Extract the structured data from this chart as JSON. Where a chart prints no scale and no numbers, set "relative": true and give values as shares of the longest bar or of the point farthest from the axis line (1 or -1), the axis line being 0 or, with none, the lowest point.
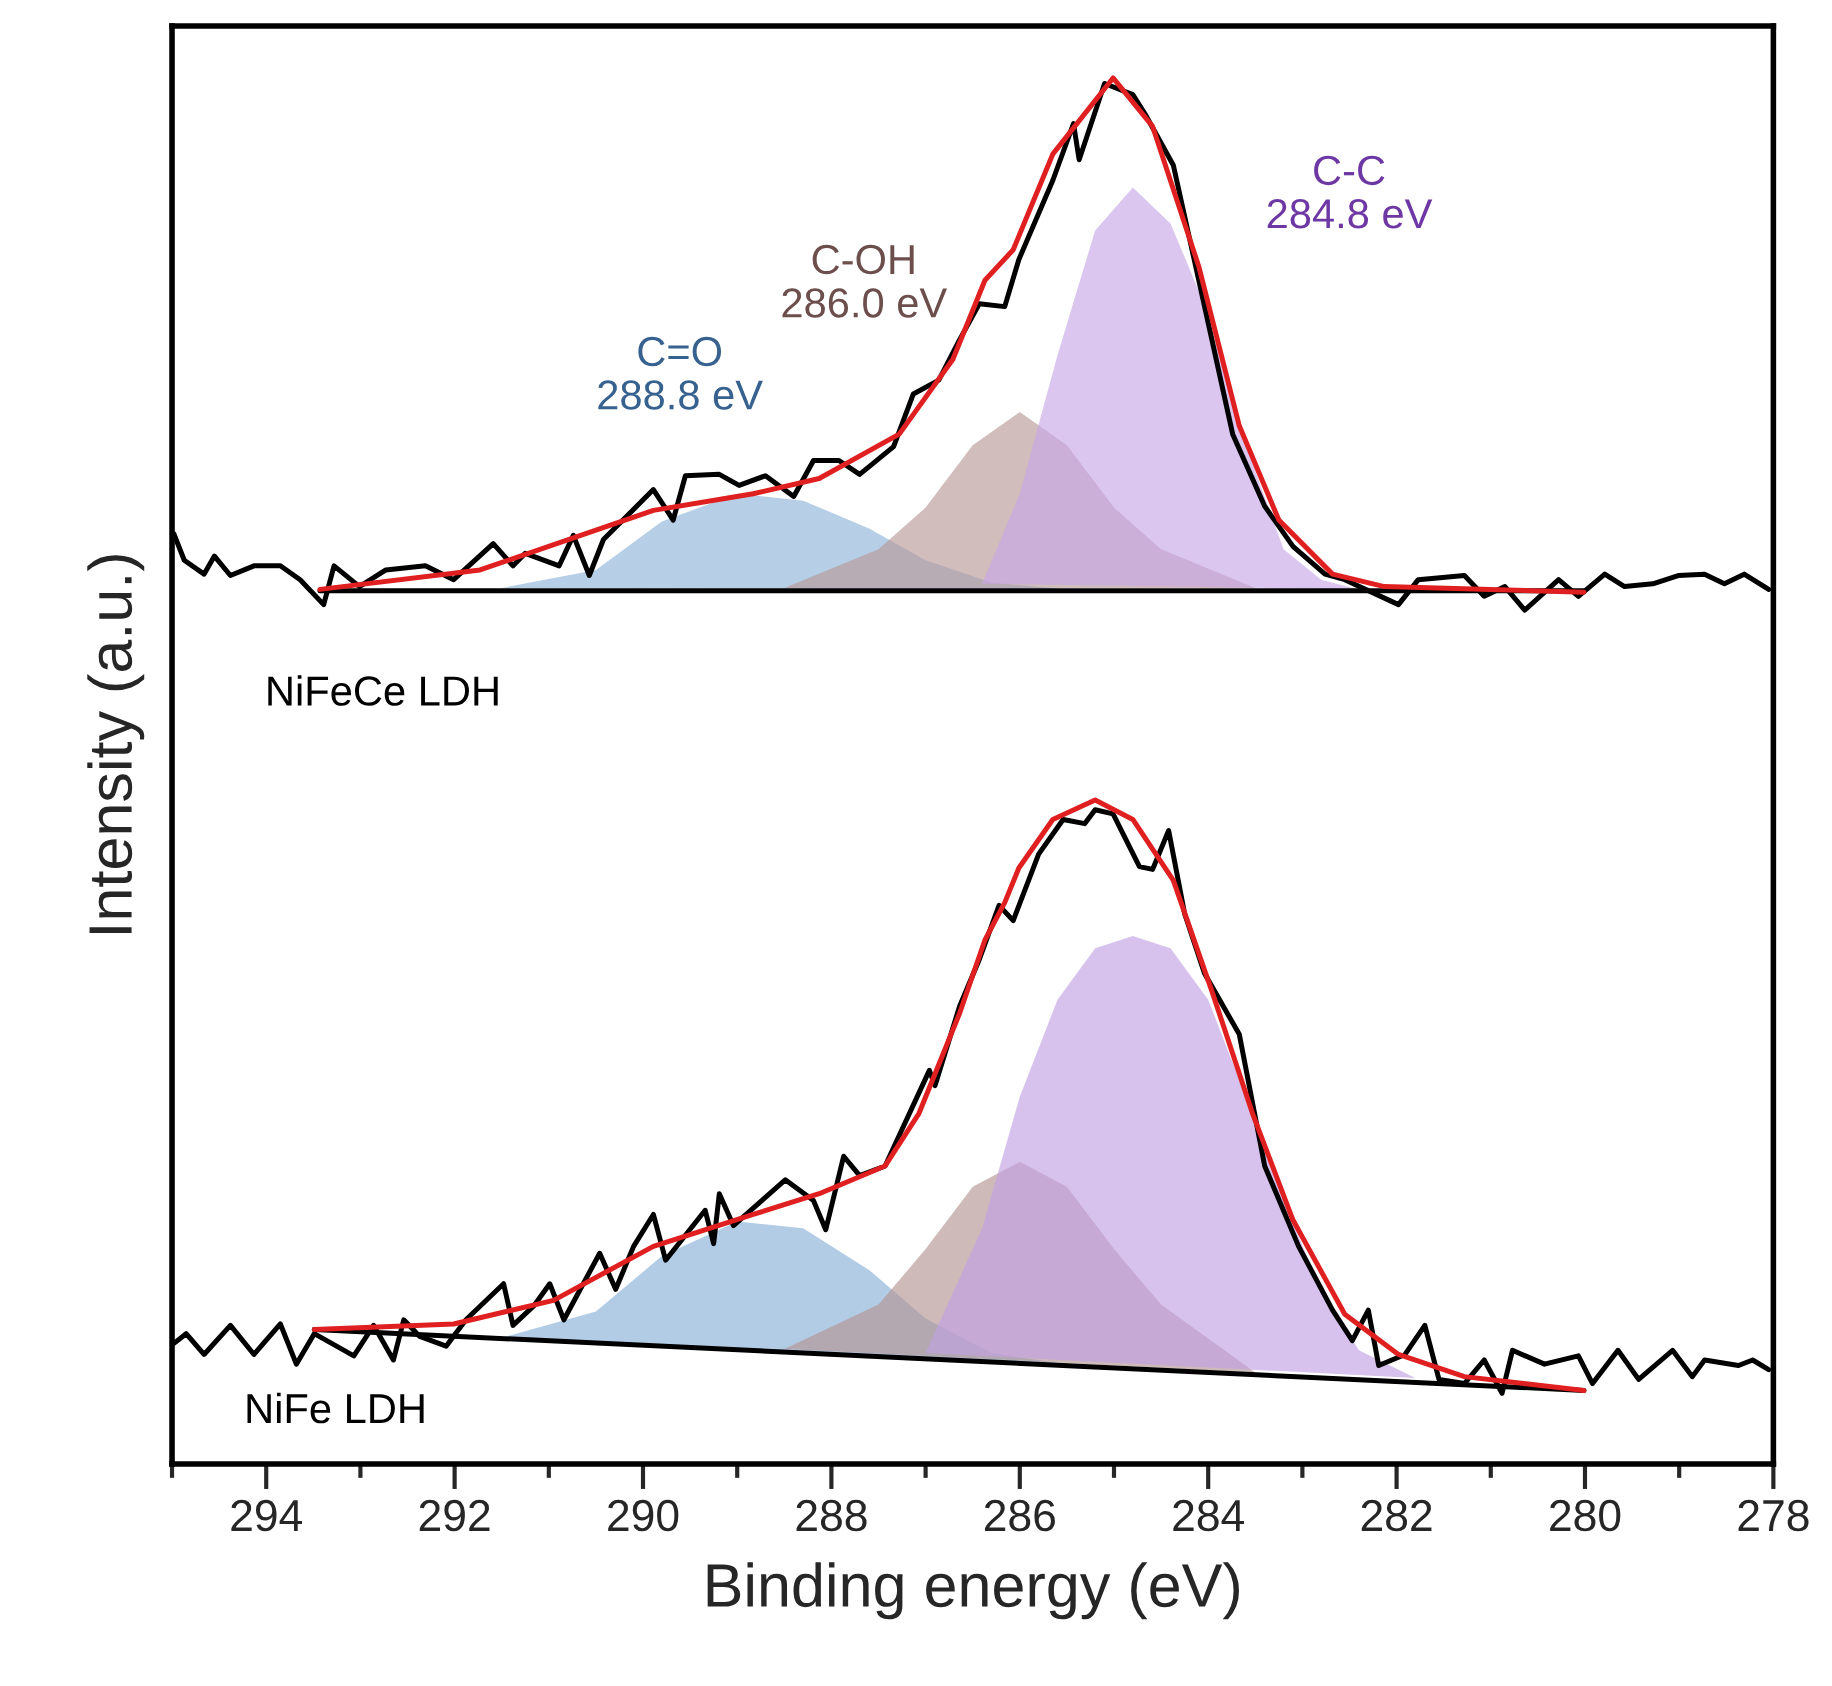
{
  "chart_data": {
    "type": "line",
    "relative": true,
    "xlabel": "Binding energy (eV)",
    "ylabel": "Intensity (a.u.)",
    "xlim": [
      295,
      278
    ],
    "xticks": [
      {
        "value": 295,
        "label": null
      },
      294,
      {
        "value": 293,
        "label": null
      },
      292,
      {
        "value": 291,
        "label": null
      },
      290,
      {
        "value": 289,
        "label": null
      },
      288,
      {
        "value": 287,
        "label": null
      },
      286,
      {
        "value": 285,
        "label": null
      },
      284,
      {
        "value": 283,
        "label": null
      },
      282,
      {
        "value": 281,
        "label": null
      },
      280,
      {
        "value": 279,
        "label": null
      },
      278
    ],
    "grid": false,
    "legend": false,
    "line_style": "solid",
    "marker": "none",
    "series": [
      {
        "type": "area",
        "color": "#8fb3d9",
        "x": [
          291.5,
          290.5,
          289.8,
          289.0,
          288.3,
          287.6,
          287.0,
          286.3,
          285.5
        ],
        "values": [
          0.632,
          0.645,
          0.68,
          0.7,
          0.695,
          0.675,
          0.652,
          0.636,
          0.631
        ]
      },
      {
        "type": "area",
        "color": "#b89a98",
        "x": [
          288.5,
          287.5,
          287.0,
          286.5,
          286.0,
          285.5,
          285.0,
          284.5,
          283.5
        ],
        "values": [
          0.632,
          0.66,
          0.69,
          0.735,
          0.759,
          0.735,
          0.69,
          0.66,
          0.632
        ]
      },
      {
        "type": "area",
        "color": "#c7a8e6",
        "x": [
          286.4,
          286.0,
          285.6,
          285.2,
          284.8,
          284.4,
          284.0,
          283.6,
          283.2,
          282.8,
          282.4
        ],
        "values": [
          0.635,
          0.7,
          0.8,
          0.89,
          0.921,
          0.895,
          0.83,
          0.735,
          0.66,
          0.638,
          0.631
        ]
      },
      {
        "type": "area",
        "color": "#8ab0d8",
        "x": [
          291.5,
          290.5,
          289.8,
          289.0,
          288.3,
          287.6,
          287.0,
          286.3,
          285.5
        ],
        "values": [
          0.091,
          0.11,
          0.15,
          0.175,
          0.17,
          0.14,
          0.105,
          0.08,
          0.072
        ]
      },
      {
        "type": "area",
        "color": "#b39593",
        "x": [
          288.5,
          287.5,
          287.0,
          286.5,
          286.0,
          285.5,
          285.0,
          284.5,
          283.5
        ],
        "values": [
          0.083,
          0.115,
          0.155,
          0.2,
          0.218,
          0.2,
          0.155,
          0.115,
          0.066
        ]
      },
      {
        "type": "area",
        "color": "#c2a2e3",
        "x": [
          287.0,
          286.4,
          286.0,
          285.6,
          285.2,
          284.8,
          284.4,
          284.0,
          283.6,
          283.2,
          282.8,
          282.4,
          281.8
        ],
        "values": [
          0.08,
          0.17,
          0.265,
          0.335,
          0.372,
          0.381,
          0.372,
          0.335,
          0.265,
          0.19,
          0.125,
          0.082,
          0.062
        ]
      },
      {
        "color": "#000000",
        "x": [
          293.43,
          280.01
        ],
        "values": [
          0.63,
          0.63
        ]
      },
      {
        "color": "#000000",
        "x": [
          293.49,
          280.01
        ],
        "values": [
          0.097,
          0.053
        ]
      },
      {
        "color": "#000000",
        "x": [
          294.98,
          294.87,
          294.66,
          294.55,
          294.38,
          294.13,
          293.85,
          293.64,
          293.39,
          293.28,
          293.01,
          292.73,
          292.31,
          292.01,
          291.59,
          291.38,
          291.25,
          290.89,
          290.74,
          290.57,
          290.42,
          289.89,
          289.68,
          289.55,
          289.19,
          288.98,
          288.7,
          288.4,
          288.19,
          287.92,
          287.7,
          287.34,
          287.13,
          286.86,
          286.64,
          286.43,
          286.16,
          286.01,
          285.65,
          285.43,
          285.37,
          285.1,
          284.8,
          284.67,
          284.37,
          284.1,
          283.74,
          283.4,
          283.1,
          282.76,
          282.55,
          281.98,
          281.77,
          281.28,
          281.07,
          280.85,
          280.64,
          280.28,
          280.07,
          279.79,
          279.58,
          279.28,
          279.01,
          278.73,
          278.52,
          278.31,
          278.05
        ],
        "values": [
          0.671,
          0.652,
          0.642,
          0.655,
          0.641,
          0.648,
          0.648,
          0.638,
          0.62,
          0.648,
          0.633,
          0.645,
          0.648,
          0.638,
          0.664,
          0.648,
          0.657,
          0.648,
          0.67,
          0.641,
          0.667,
          0.703,
          0.681,
          0.713,
          0.714,
          0.706,
          0.713,
          0.698,
          0.724,
          0.724,
          0.714,
          0.734,
          0.772,
          0.782,
          0.811,
          0.837,
          0.835,
          0.869,
          0.926,
          0.967,
          0.941,
          0.996,
          0.988,
          0.974,
          0.937,
          0.854,
          0.743,
          0.691,
          0.662,
          0.642,
          0.638,
          0.62,
          0.638,
          0.641,
          0.626,
          0.633,
          0.616,
          0.638,
          0.626,
          0.642,
          0.633,
          0.635,
          0.641,
          0.642,
          0.635,
          0.642,
          0.631
        ]
      },
      {
        "color": "#000000",
        "x": [
          294.98,
          294.85,
          294.66,
          294.38,
          294.13,
          293.85,
          293.68,
          293.49,
          293.07,
          292.86,
          292.65,
          292.54,
          292.37,
          292.09,
          291.88,
          291.48,
          291.38,
          291.16,
          290.99,
          290.84,
          290.46,
          290.29,
          290.1,
          289.89,
          289.76,
          289.34,
          289.25,
          289.19,
          289.04,
          288.49,
          288.19,
          288.06,
          287.87,
          287.7,
          287.43,
          286.96,
          286.9,
          286.64,
          286.43,
          286.22,
          286.07,
          285.8,
          285.54,
          285.31,
          285.2,
          285.01,
          284.73,
          284.59,
          284.42,
          284.25,
          284.04,
          283.67,
          283.4,
          283.04,
          282.68,
          282.47,
          282.3,
          282.19,
          281.91,
          281.7,
          281.55,
          281.28,
          281.07,
          280.88,
          280.77,
          280.43,
          280.07,
          279.92,
          279.65,
          279.43,
          279.07,
          278.86,
          278.73,
          278.37,
          278.22,
          278.05
        ],
        "values": [
          0.087,
          0.094,
          0.079,
          0.1,
          0.079,
          0.101,
          0.072,
          0.094,
          0.078,
          0.1,
          0.075,
          0.104,
          0.092,
          0.085,
          0.104,
          0.13,
          0.1,
          0.114,
          0.13,
          0.104,
          0.152,
          0.126,
          0.157,
          0.18,
          0.147,
          0.183,
          0.159,
          0.195,
          0.172,
          0.205,
          0.19,
          0.169,
          0.222,
          0.208,
          0.215,
          0.284,
          0.273,
          0.33,
          0.364,
          0.403,
          0.392,
          0.44,
          0.465,
          0.462,
          0.472,
          0.469,
          0.431,
          0.429,
          0.457,
          0.397,
          0.354,
          0.31,
          0.215,
          0.157,
          0.111,
          0.089,
          0.111,
          0.071,
          0.079,
          0.1,
          0.061,
          0.058,
          0.075,
          0.051,
          0.082,
          0.072,
          0.078,
          0.058,
          0.082,
          0.061,
          0.082,
          0.063,
          0.075,
          0.071,
          0.075,
          0.068
        ]
      },
      {
        "color": "#e02020",
        "x": [
          293.43,
          291.73,
          289.89,
          288.83,
          288.13,
          287.28,
          286.71,
          286.37,
          286.07,
          285.65,
          285.01,
          284.59,
          284.1,
          283.67,
          283.25,
          282.68,
          282.13,
          280.01
        ],
        "values": [
          0.631,
          0.645,
          0.688,
          0.7,
          0.711,
          0.743,
          0.797,
          0.854,
          0.876,
          0.945,
          1.0,
          0.965,
          0.864,
          0.749,
          0.681,
          0.642,
          0.633,
          0.629
        ]
      },
      {
        "color": "#e02020",
        "x": [
          293.49,
          292.01,
          290.95,
          289.89,
          288.83,
          288.13,
          287.43,
          287.07,
          286.64,
          286.37,
          286.16,
          286.01,
          285.65,
          285.2,
          284.8,
          284.37,
          283.95,
          283.53,
          283.1,
          282.55,
          281.98,
          281.28,
          280.01
        ],
        "values": [
          0.097,
          0.101,
          0.118,
          0.157,
          0.18,
          0.195,
          0.215,
          0.253,
          0.325,
          0.378,
          0.405,
          0.43,
          0.465,
          0.479,
          0.465,
          0.421,
          0.339,
          0.253,
          0.176,
          0.108,
          0.079,
          0.063,
          0.053
        ]
      }
    ],
    "annotations": [
      "C=O\n288.8 eV",
      "C-OH\n286.0 eV",
      "C-C\n284.8 eV",
      "NiFeCe LDH",
      "NiFe LDH"
    ]
  }
}
